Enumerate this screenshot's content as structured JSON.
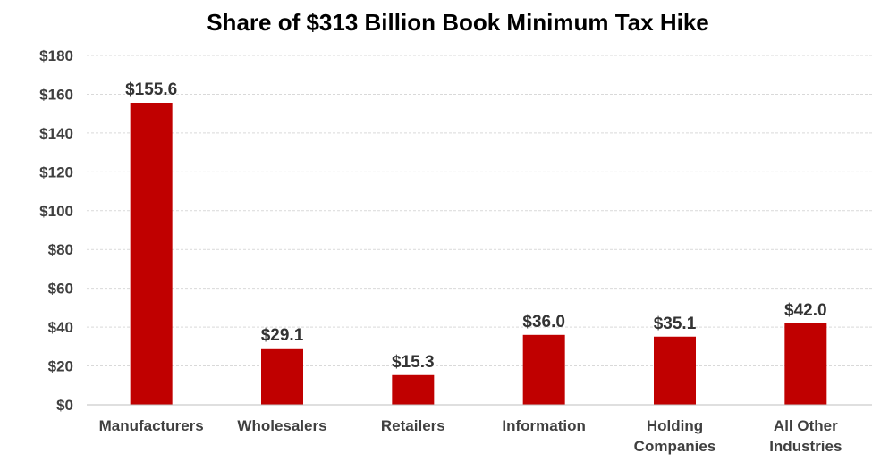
{
  "chart_data": {
    "type": "bar",
    "title": "Share of $313 Billion Book Minimum Tax Hike",
    "xlabel": "",
    "ylabel": "",
    "categories": [
      [
        "Manufacturers"
      ],
      [
        "Wholesalers"
      ],
      [
        "Retailers"
      ],
      [
        "Information"
      ],
      [
        "Holding",
        "Companies"
      ],
      [
        "All Other",
        "Industries"
      ]
    ],
    "values": [
      155.6,
      29.1,
      15.3,
      36.0,
      35.1,
      42.0
    ],
    "data_labels": [
      "$155.6",
      "$29.1",
      "$15.3",
      "$36.0",
      "$35.1",
      "$42.0"
    ],
    "ylim": [
      0,
      180
    ],
    "yticks": [
      0,
      20,
      40,
      60,
      80,
      100,
      120,
      140,
      160,
      180
    ],
    "ytick_labels": [
      "$0",
      "$20",
      "$40",
      "$60",
      "$80",
      "$100",
      "$120",
      "$140",
      "$160",
      "$180"
    ],
    "grid": true,
    "legend": "none",
    "bar_color": "#c00000"
  }
}
